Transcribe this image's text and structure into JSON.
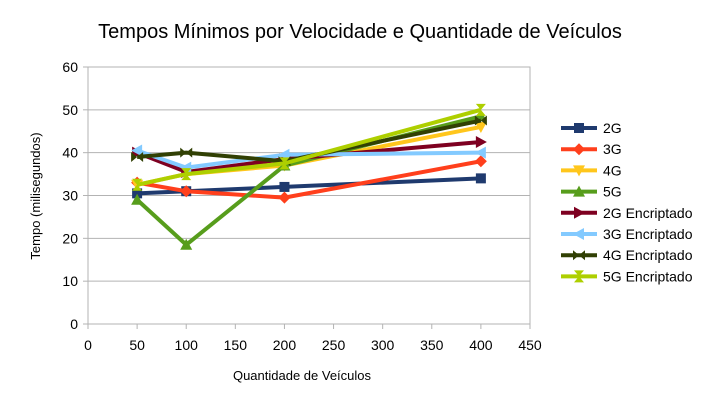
{
  "chart_data": {
    "type": "line",
    "title": "Tempos Mínimos por Velocidade e Quantidade de Veículos",
    "xlabel": "Quantidade de Veículos",
    "ylabel": "Tempo (milisegundos)",
    "xlim": [
      0,
      450
    ],
    "ylim": [
      0,
      60
    ],
    "xticks": [
      0,
      50,
      100,
      150,
      200,
      250,
      300,
      350,
      400,
      450
    ],
    "yticks": [
      0,
      10,
      20,
      30,
      40,
      50,
      60
    ],
    "grid": "horizontal",
    "legend": "right",
    "x": [
      50,
      100,
      200,
      400
    ],
    "series": [
      {
        "name": "2G",
        "values": [
          30.5,
          31,
          32,
          34
        ],
        "color": "#1f3a6e",
        "marker": "square"
      },
      {
        "name": "3G",
        "values": [
          33,
          31,
          29.5,
          38
        ],
        "color": "#ff3f1c",
        "marker": "diamond"
      },
      {
        "name": "4G",
        "values": [
          32.5,
          35,
          37,
          46
        ],
        "color": "#ffc61c",
        "marker": "triangle-down"
      },
      {
        "name": "5G",
        "values": [
          29,
          18.5,
          37,
          48.5
        ],
        "color": "#579d1c",
        "marker": "triangle-up"
      },
      {
        "name": "2G Encriptado",
        "values": [
          40,
          35.5,
          38.5,
          42.5
        ],
        "color": "#7e0021",
        "marker": "triangle-right"
      },
      {
        "name": "3G Encriptado",
        "values": [
          40.5,
          36.5,
          39.5,
          40
        ],
        "color": "#83caff",
        "marker": "triangle-left"
      },
      {
        "name": "4G Encriptado",
        "values": [
          39,
          40,
          38,
          47.5
        ],
        "color": "#314004",
        "marker": "bowtie"
      },
      {
        "name": "5G Encriptado",
        "values": [
          32.5,
          35,
          37.5,
          50
        ],
        "color": "#aecf00",
        "marker": "hourglass"
      }
    ]
  }
}
